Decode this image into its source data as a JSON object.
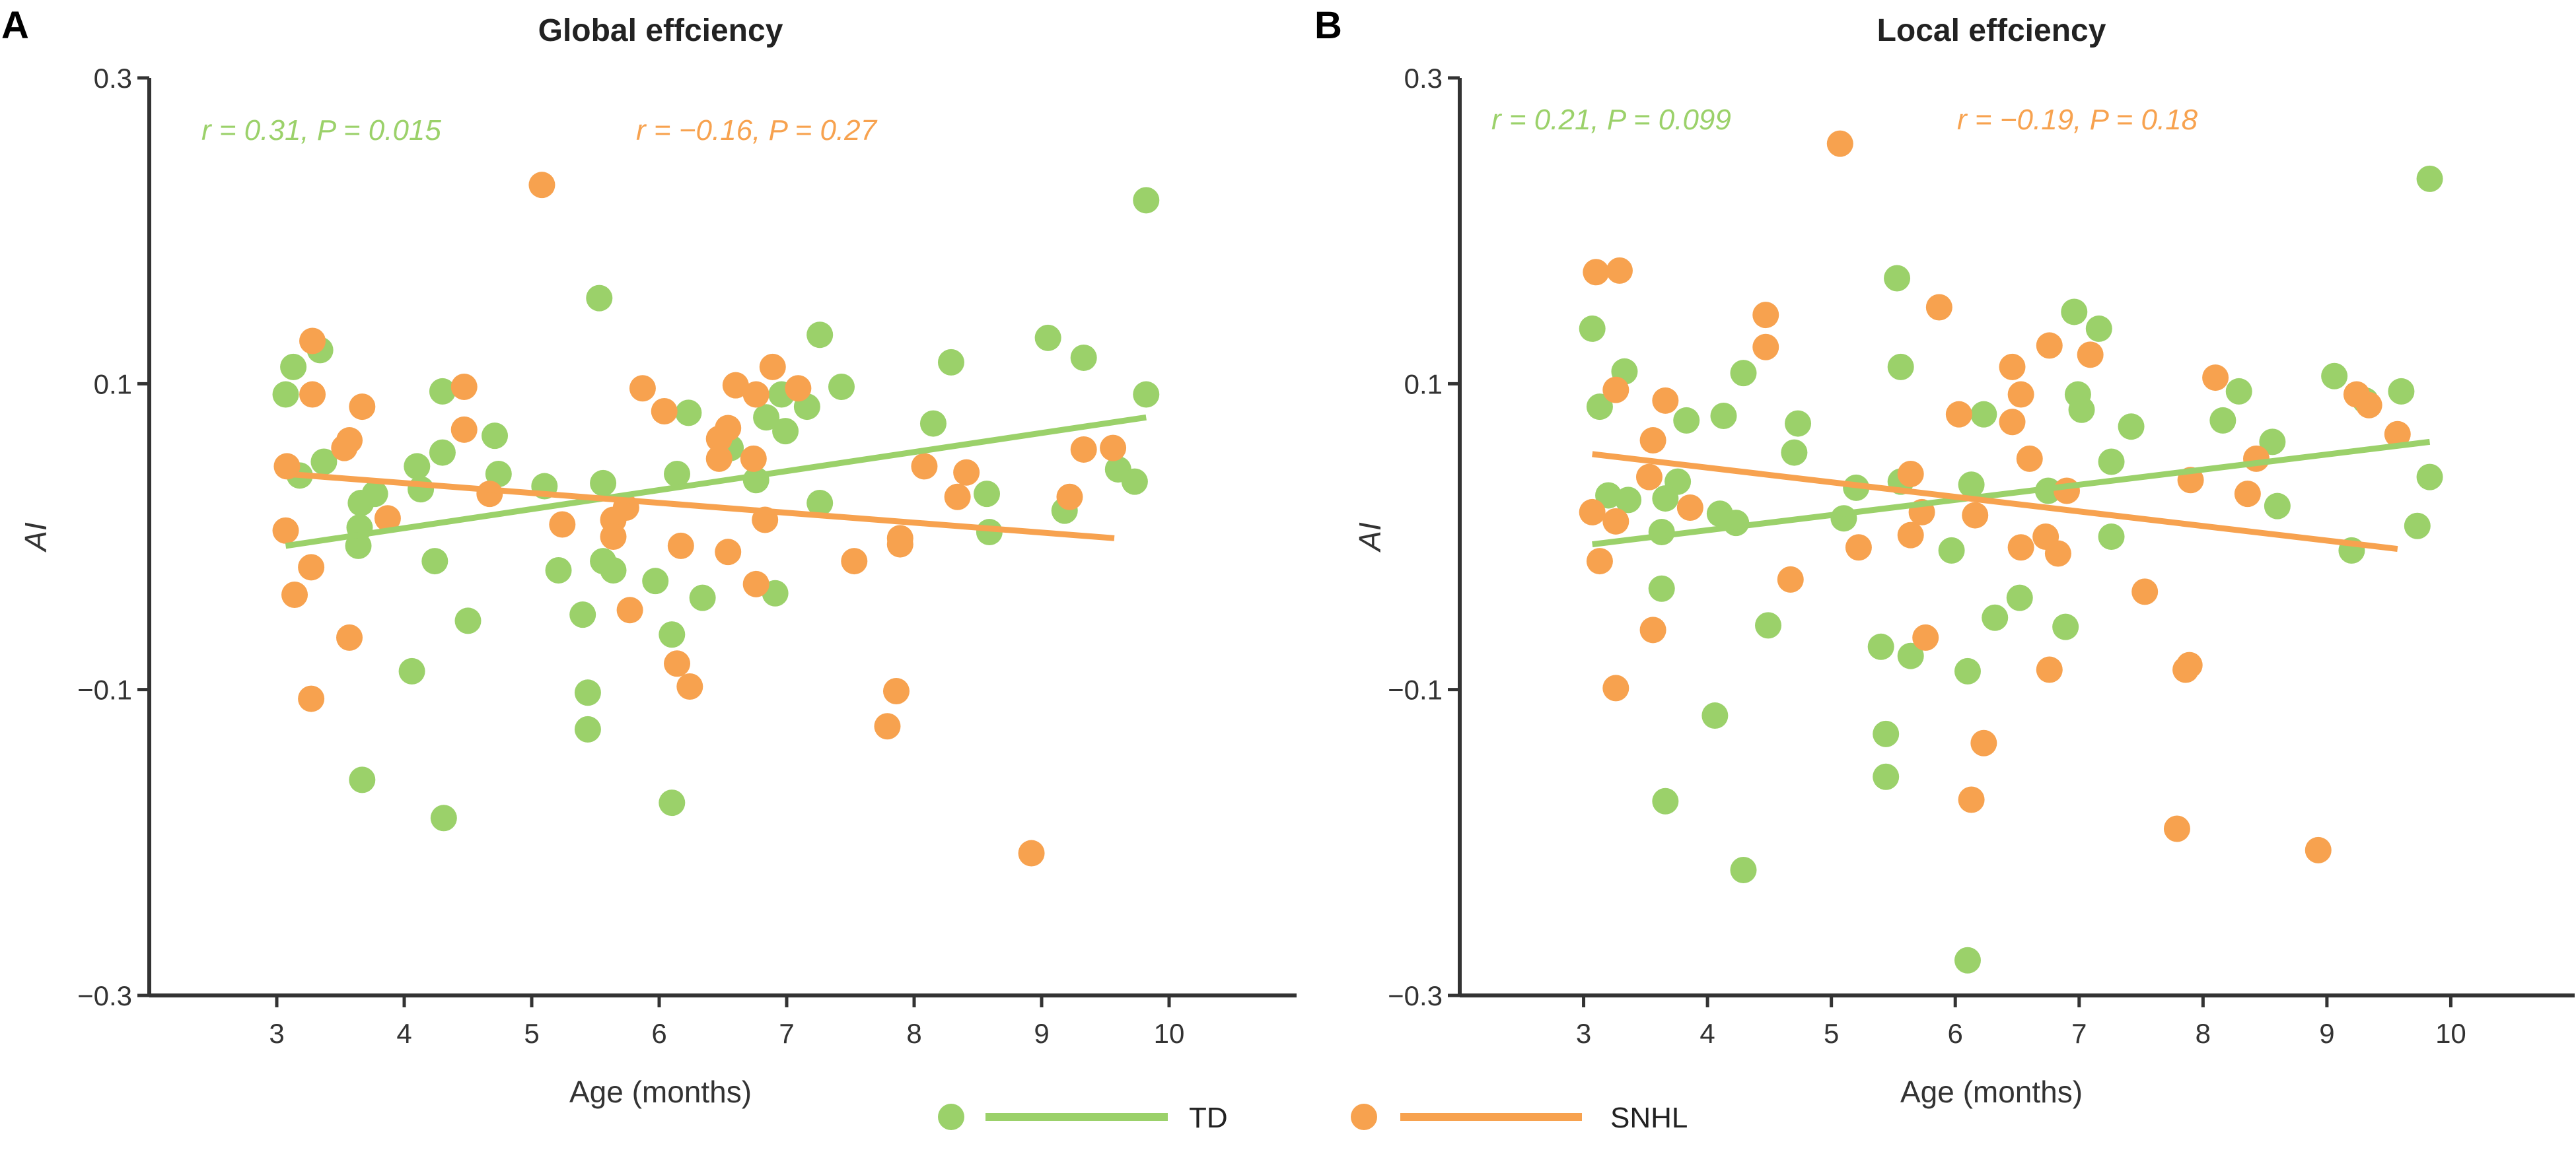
{
  "colors": {
    "TD": "#9bd16a",
    "SNHL": "#f7a24f",
    "axis": "#333333"
  },
  "legend": [
    {
      "label": "TD",
      "color": "#9bd16a"
    },
    {
      "label": "SNHL",
      "color": "#f7a24f"
    }
  ],
  "chart_data": [
    {
      "type": "scatter",
      "panel_label": "A",
      "title": "Global effciency",
      "xlabel": "Age (months)",
      "ylabel": "AI",
      "xlim": [
        2,
        11
      ],
      "ylim": [
        -0.3,
        0.3
      ],
      "xticks": [
        3,
        4,
        5,
        6,
        7,
        8,
        9,
        10
      ],
      "xtick_labels": [
        "3",
        "4",
        "5",
        "6",
        "7",
        "8",
        "9",
        "10"
      ],
      "yticks": [
        0.3,
        0.1,
        -0.1,
        -0.3
      ],
      "ytick_labels": [
        "0.3",
        "0.1",
        "−0.1",
        "−0.3"
      ],
      "annotations": {
        "TD": "r = 0.31, P = 0.015",
        "SNHL": "r = −0.16, P = 0.27"
      },
      "series": [
        {
          "name": "TD",
          "points": [
            [
              3.07,
              0.093
            ],
            [
              3.13,
              0.111
            ],
            [
              3.34,
              0.122
            ],
            [
              3.37,
              0.049
            ],
            [
              3.18,
              0.04
            ],
            [
              3.66,
              0.022
            ],
            [
              3.77,
              0.028
            ],
            [
              3.65,
              0.006
            ],
            [
              3.64,
              -0.006
            ],
            [
              4.1,
              0.046
            ],
            [
              4.13,
              0.031
            ],
            [
              4.3,
              0.095
            ],
            [
              4.3,
              0.055
            ],
            [
              4.24,
              -0.016
            ],
            [
              4.71,
              0.066
            ],
            [
              4.74,
              0.041
            ],
            [
              4.5,
              -0.055
            ],
            [
              4.06,
              -0.088
            ],
            [
              3.67,
              -0.159
            ],
            [
              4.31,
              -0.184
            ],
            [
              5.1,
              0.033
            ],
            [
              5.21,
              -0.022
            ],
            [
              5.53,
              0.156
            ],
            [
              5.56,
              0.035
            ],
            [
              5.56,
              -0.016
            ],
            [
              5.64,
              -0.022
            ],
            [
              5.4,
              -0.051
            ],
            [
              5.44,
              -0.102
            ],
            [
              5.44,
              -0.126
            ],
            [
              5.97,
              -0.029
            ],
            [
              6.1,
              -0.064
            ],
            [
              6.1,
              -0.174
            ],
            [
              6.14,
              0.041
            ],
            [
              6.23,
              0.081
            ],
            [
              6.34,
              -0.04
            ],
            [
              6.56,
              0.058
            ],
            [
              6.76,
              0.037
            ],
            [
              6.84,
              0.078
            ],
            [
              6.99,
              0.069
            ],
            [
              6.91,
              -0.037
            ],
            [
              6.96,
              0.093
            ],
            [
              7.16,
              0.085
            ],
            [
              7.26,
              0.132
            ],
            [
              7.26,
              0.022
            ],
            [
              7.43,
              0.098
            ],
            [
              8.15,
              0.074
            ],
            [
              8.29,
              0.114
            ],
            [
              8.57,
              0.028
            ],
            [
              8.59,
              0.003
            ],
            [
              9.05,
              0.13
            ],
            [
              9.33,
              0.117
            ],
            [
              9.18,
              0.017
            ],
            [
              9.6,
              0.044
            ],
            [
              9.73,
              0.036
            ],
            [
              9.82,
              0.22
            ],
            [
              9.82,
              0.093
            ]
          ],
          "fit": [
            [
              3.07,
              -0.006
            ],
            [
              9.82,
              0.078
            ]
          ]
        },
        {
          "name": "SNHL",
          "points": [
            [
              3.08,
              0.046
            ],
            [
              3.07,
              0.004
            ],
            [
              3.28,
              0.128
            ],
            [
              3.28,
              0.093
            ],
            [
              3.27,
              -0.02
            ],
            [
              3.14,
              -0.038
            ],
            [
              3.27,
              -0.106
            ],
            [
              3.57,
              -0.066
            ],
            [
              3.53,
              0.058
            ],
            [
              3.57,
              0.063
            ],
            [
              3.67,
              0.085
            ],
            [
              3.87,
              0.012
            ],
            [
              4.47,
              0.098
            ],
            [
              4.47,
              0.07
            ],
            [
              4.67,
              0.028
            ],
            [
              5.08,
              0.23
            ],
            [
              5.24,
              0.008
            ],
            [
              5.64,
              0.011
            ],
            [
              5.64,
              0.0
            ],
            [
              5.74,
              0.019
            ],
            [
              5.77,
              -0.048
            ],
            [
              5.87,
              0.097
            ],
            [
              6.04,
              0.082
            ],
            [
              6.17,
              -0.006
            ],
            [
              6.14,
              -0.083
            ],
            [
              6.24,
              -0.098
            ],
            [
              6.47,
              0.064
            ],
            [
              6.54,
              0.071
            ],
            [
              6.47,
              0.051
            ],
            [
              6.54,
              -0.01
            ],
            [
              6.6,
              0.099
            ],
            [
              6.76,
              0.093
            ],
            [
              6.74,
              0.051
            ],
            [
              6.83,
              0.011
            ],
            [
              6.76,
              -0.031
            ],
            [
              6.89,
              0.111
            ],
            [
              7.09,
              0.097
            ],
            [
              7.53,
              -0.016
            ],
            [
              7.89,
              -0.001
            ],
            [
              7.89,
              -0.005
            ],
            [
              7.86,
              -0.101
            ],
            [
              7.79,
              -0.124
            ],
            [
              8.08,
              0.046
            ],
            [
              8.34,
              0.026
            ],
            [
              8.41,
              0.042
            ],
            [
              8.92,
              -0.207
            ],
            [
              9.22,
              0.026
            ],
            [
              9.33,
              0.057
            ],
            [
              9.56,
              0.058
            ]
          ],
          "fit": [
            [
              3.08,
              0.041
            ],
            [
              9.57,
              -0.001
            ]
          ]
        }
      ]
    },
    {
      "type": "scatter",
      "panel_label": "B",
      "title": "Local effciency",
      "xlabel": "Age (months)",
      "ylabel": "AI",
      "xlim": [
        2,
        11
      ],
      "ylim": [
        -0.3,
        0.3
      ],
      "xticks": [
        3,
        4,
        5,
        6,
        7,
        8,
        9,
        10
      ],
      "xtick_labels": [
        "3",
        "4",
        "5",
        "6",
        "7",
        "8",
        "9",
        "10"
      ],
      "yticks": [
        0.3,
        0.1,
        -0.1,
        -0.3
      ],
      "ytick_labels": [
        "0.3",
        "0.1",
        "−0.1",
        "−0.3"
      ],
      "annotations": {
        "TD": "r = 0.21, P = 0.099",
        "SNHL": "r = −0.19, P = 0.18"
      },
      "series": [
        {
          "name": "TD",
          "points": [
            [
              3.07,
              0.136
            ],
            [
              3.13,
              0.085
            ],
            [
              3.33,
              0.108
            ],
            [
              3.2,
              0.027
            ],
            [
              3.36,
              0.024
            ],
            [
              3.76,
              0.036
            ],
            [
              3.66,
              0.025
            ],
            [
              3.63,
              0.003
            ],
            [
              3.63,
              -0.034
            ],
            [
              3.66,
              -0.173
            ],
            [
              3.83,
              0.076
            ],
            [
              4.13,
              0.079
            ],
            [
              4.1,
              0.015
            ],
            [
              4.23,
              0.009
            ],
            [
              4.29,
              0.107
            ],
            [
              4.06,
              -0.117
            ],
            [
              4.29,
              -0.218
            ],
            [
              4.7,
              0.055
            ],
            [
              4.73,
              0.074
            ],
            [
              4.49,
              -0.058
            ],
            [
              5.2,
              0.032
            ],
            [
              5.1,
              0.012
            ],
            [
              5.4,
              -0.072
            ],
            [
              5.44,
              -0.129
            ],
            [
              5.44,
              -0.157
            ],
            [
              5.53,
              0.169
            ],
            [
              5.56,
              0.111
            ],
            [
              5.56,
              0.036
            ],
            [
              5.64,
              -0.078
            ],
            [
              5.97,
              -0.009
            ],
            [
              6.1,
              -0.088
            ],
            [
              6.1,
              -0.277
            ],
            [
              6.13,
              0.034
            ],
            [
              6.23,
              0.08
            ],
            [
              6.32,
              -0.053
            ],
            [
              6.52,
              -0.04
            ],
            [
              6.75,
              0.03
            ],
            [
              6.89,
              -0.059
            ],
            [
              6.96,
              0.147
            ],
            [
              7.16,
              0.136
            ],
            [
              6.99,
              0.093
            ],
            [
              7.02,
              0.083
            ],
            [
              7.26,
              0.049
            ],
            [
              7.26,
              0.0
            ],
            [
              7.42,
              0.072
            ],
            [
              8.16,
              0.076
            ],
            [
              8.29,
              0.095
            ],
            [
              8.56,
              0.062
            ],
            [
              8.6,
              0.02
            ],
            [
              9.06,
              0.105
            ],
            [
              9.2,
              -0.009
            ],
            [
              9.31,
              0.089
            ],
            [
              9.6,
              0.095
            ],
            [
              9.73,
              0.007
            ],
            [
              9.83,
              0.039
            ],
            [
              9.83,
              0.234
            ]
          ],
          "fit": [
            [
              3.07,
              -0.005
            ],
            [
              9.83,
              0.062
            ]
          ]
        },
        {
          "name": "SNHL",
          "points": [
            [
              3.1,
              0.173
            ],
            [
              3.29,
              0.174
            ],
            [
              3.26,
              0.096
            ],
            [
              3.07,
              0.016
            ],
            [
              3.26,
              0.01
            ],
            [
              3.13,
              -0.016
            ],
            [
              3.26,
              -0.099
            ],
            [
              3.56,
              0.063
            ],
            [
              3.53,
              0.039
            ],
            [
              3.56,
              -0.061
            ],
            [
              3.66,
              0.089
            ],
            [
              3.86,
              0.019
            ],
            [
              4.47,
              0.145
            ],
            [
              4.47,
              0.124
            ],
            [
              4.67,
              -0.028
            ],
            [
              5.07,
              0.257
            ],
            [
              5.22,
              -0.007
            ],
            [
              5.64,
              0.041
            ],
            [
              5.64,
              0.001
            ],
            [
              5.73,
              0.016
            ],
            [
              5.76,
              -0.066
            ],
            [
              5.87,
              0.15
            ],
            [
              6.03,
              0.08
            ],
            [
              6.16,
              0.014
            ],
            [
              6.13,
              -0.172
            ],
            [
              6.23,
              -0.135
            ],
            [
              6.46,
              0.111
            ],
            [
              6.53,
              0.093
            ],
            [
              6.46,
              0.075
            ],
            [
              6.6,
              0.051
            ],
            [
              6.53,
              -0.007
            ],
            [
              6.73,
              0.0
            ],
            [
              6.83,
              -0.011
            ],
            [
              6.76,
              0.125
            ],
            [
              6.9,
              0.03
            ],
            [
              6.76,
              -0.087
            ],
            [
              7.09,
              0.119
            ],
            [
              7.53,
              -0.036
            ],
            [
              7.86,
              -0.087
            ],
            [
              7.89,
              -0.084
            ],
            [
              7.79,
              -0.191
            ],
            [
              7.9,
              0.037
            ],
            [
              8.1,
              0.104
            ],
            [
              8.36,
              0.028
            ],
            [
              8.43,
              0.051
            ],
            [
              8.93,
              -0.205
            ],
            [
              9.24,
              0.093
            ],
            [
              9.34,
              0.086
            ],
            [
              9.57,
              0.067
            ]
          ],
          "fit": [
            [
              3.07,
              0.054
            ],
            [
              9.57,
              -0.008
            ]
          ]
        }
      ]
    }
  ]
}
